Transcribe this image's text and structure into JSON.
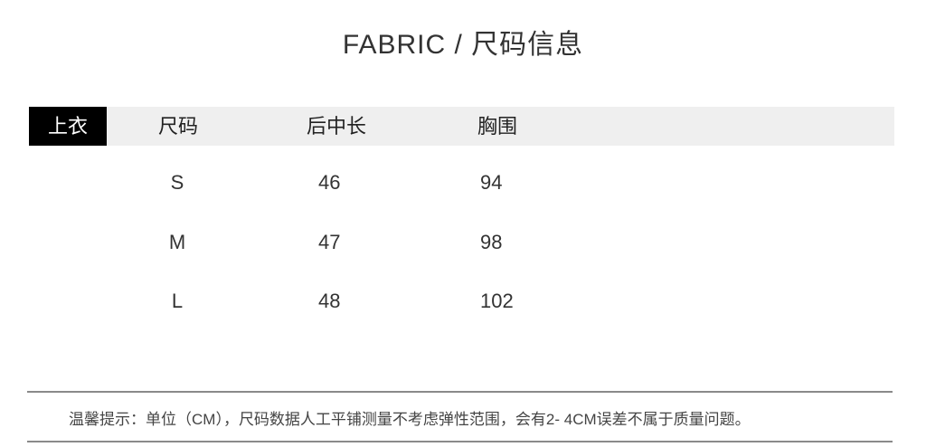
{
  "title": "FABRIC /  尺码信息",
  "table": {
    "category": "上衣",
    "headers": [
      "尺码",
      "后中长",
      "胸围"
    ],
    "rows": [
      [
        "S",
        "46",
        "94"
      ],
      [
        "M",
        "47",
        "98"
      ],
      [
        "L",
        "48",
        "102"
      ]
    ]
  },
  "note": "温馨提示：单位（CM），尺码数据人工平铺测量不考虑弹性范围，会有2- 4CM误差不属于质量问题。",
  "colors": {
    "header_bg": "#efefef",
    "tag_bg": "#000000",
    "rule": "#8a8a8a"
  }
}
